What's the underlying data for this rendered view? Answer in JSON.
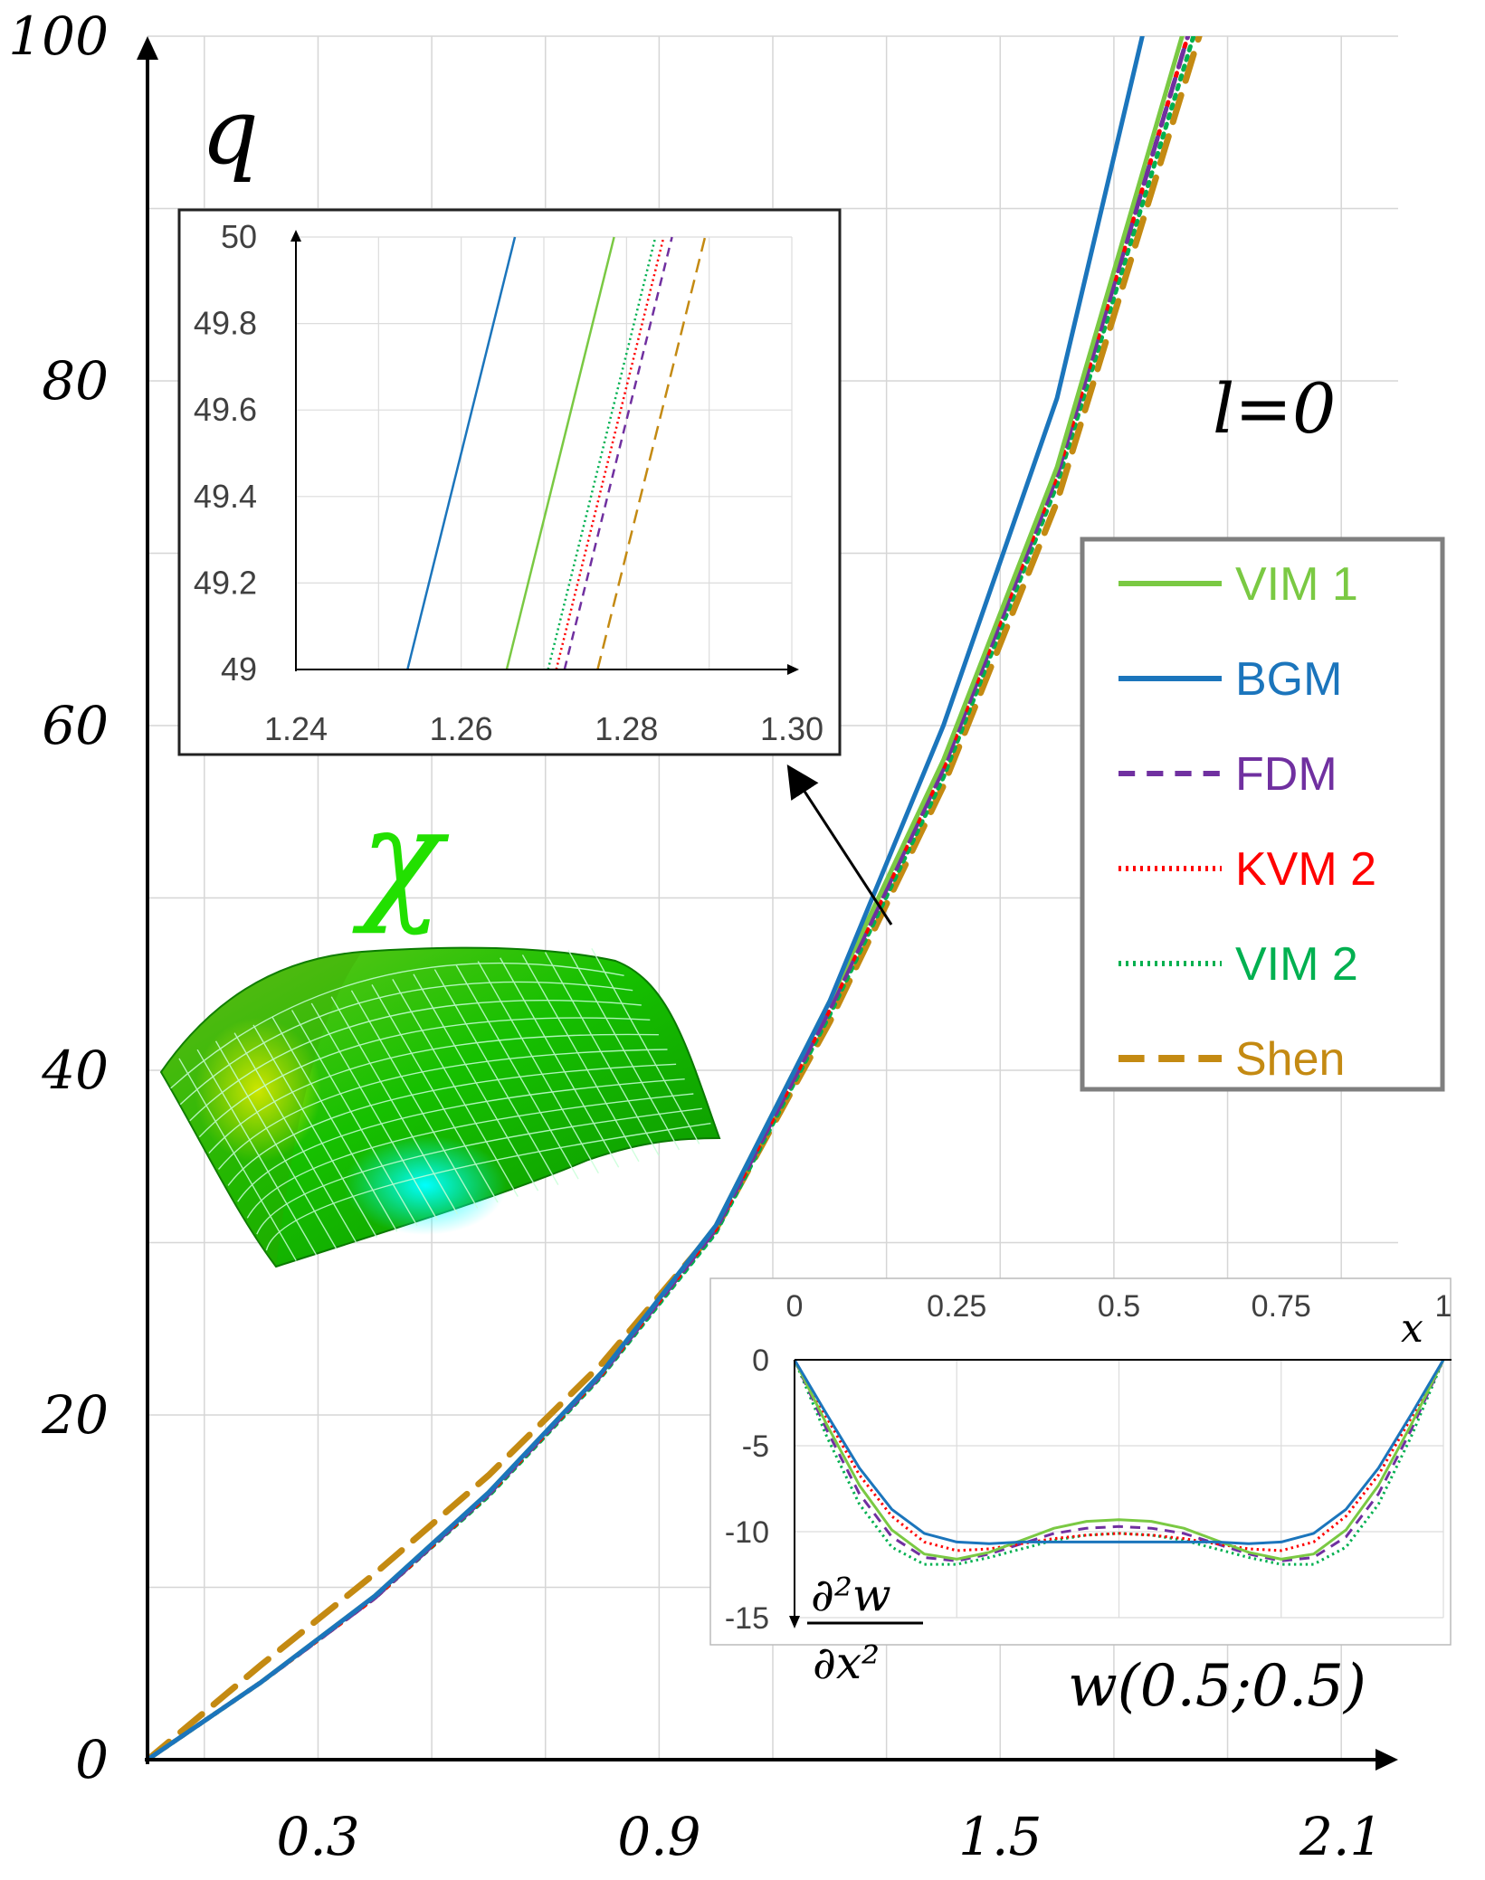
{
  "chart_data": [
    {
      "type": "line",
      "role": "main",
      "ylabel": "q",
      "xlabel": "w(0.5;0.5)",
      "annotation": "l=0",
      "surface_label": "χ",
      "xlim": [
        0,
        2.2
      ],
      "ylim": [
        0,
        100
      ],
      "x_ticks": [
        "0.3",
        "0.9",
        "1.5",
        "2.1"
      ],
      "x_tick_values": [
        0.3,
        0.9,
        1.5,
        2.1
      ],
      "y_ticks": [
        "0",
        "20",
        "40",
        "60",
        "80",
        "100"
      ],
      "y_tick_values": [
        0,
        20,
        40,
        60,
        80,
        100
      ],
      "grid": true,
      "legend_position": "right",
      "series": [
        {
          "name": "VIM 1",
          "color": "#7ac943",
          "dash": "solid",
          "x": [
            0,
            0.2,
            0.4,
            0.6,
            0.8,
            1.0,
            1.2,
            1.4,
            1.6,
            1.82
          ],
          "y": [
            0,
            4.5,
            9.5,
            15.5,
            22.5,
            31,
            44,
            58,
            75,
            100
          ]
        },
        {
          "name": "BGM",
          "color": "#1b75bc",
          "dash": "solid",
          "x": [
            0,
            0.2,
            0.4,
            0.6,
            0.8,
            1.0,
            1.2,
            1.4,
            1.6,
            1.75
          ],
          "y": [
            0,
            4.5,
            9.5,
            15.5,
            22.5,
            31,
            44,
            60,
            79,
            100
          ]
        },
        {
          "name": "FDM",
          "color": "#7030a0",
          "dash": "dashed",
          "x": [
            0,
            0.2,
            0.4,
            0.6,
            0.8,
            1.0,
            1.2,
            1.4,
            1.6,
            1.83
          ],
          "y": [
            0,
            4.5,
            9.4,
            15.4,
            22.4,
            30.8,
            43.5,
            57.5,
            74.5,
            100
          ]
        },
        {
          "name": "KVM 2",
          "color": "#ff0000",
          "dash": "dotted",
          "x": [
            0,
            0.2,
            0.4,
            0.6,
            0.8,
            1.0,
            1.2,
            1.4,
            1.6,
            1.83
          ],
          "y": [
            0,
            4.5,
            9.4,
            15.4,
            22.4,
            30.8,
            43.5,
            57.5,
            74.5,
            100
          ]
        },
        {
          "name": "VIM 2",
          "color": "#00b050",
          "dash": "dotted",
          "x": [
            0,
            0.2,
            0.4,
            0.6,
            0.8,
            1.0,
            1.2,
            1.4,
            1.6,
            1.84
          ],
          "y": [
            0,
            4.5,
            9.4,
            15.3,
            22.3,
            30.6,
            43.2,
            57,
            74,
            100
          ]
        },
        {
          "name": "Shen",
          "color": "#c48a12",
          "dash": "longdash",
          "x": [
            0,
            0.2,
            0.4,
            0.6,
            0.8,
            1.0,
            1.2,
            1.4,
            1.6,
            1.85
          ],
          "y": [
            0,
            5.5,
            10.8,
            16.5,
            23,
            30.8,
            42.8,
            56.5,
            73,
            100
          ]
        }
      ]
    },
    {
      "type": "line",
      "role": "zoom-inset",
      "xlim": [
        1.24,
        1.3
      ],
      "ylim": [
        49,
        50
      ],
      "x_ticks": [
        "1.24",
        "1.26",
        "1.28",
        "1.30"
      ],
      "x_tick_values": [
        1.24,
        1.26,
        1.28,
        1.3
      ],
      "y_ticks": [
        "49",
        "49.2",
        "49.4",
        "49.6",
        "49.8",
        "50"
      ],
      "y_tick_values": [
        49,
        49.2,
        49.4,
        49.6,
        49.8,
        50
      ],
      "grid": true,
      "series": [
        {
          "name": "BGM",
          "x": [
            1.2535,
            1.2665
          ],
          "y": [
            49,
            50
          ]
        },
        {
          "name": "VIM 1",
          "x": [
            1.2655,
            1.2785
          ],
          "y": [
            49,
            50
          ]
        },
        {
          "name": "VIM 2",
          "x": [
            1.2705,
            1.2835
          ],
          "y": [
            49,
            50
          ]
        },
        {
          "name": "KVM 2",
          "x": [
            1.2715,
            1.2845
          ],
          "y": [
            49,
            50
          ]
        },
        {
          "name": "FDM",
          "x": [
            1.2725,
            1.2855
          ],
          "y": [
            49,
            50
          ]
        },
        {
          "name": "Shen",
          "x": [
            1.2765,
            1.2895
          ],
          "y": [
            49,
            50
          ]
        }
      ]
    },
    {
      "type": "line",
      "role": "second-derivative-inset",
      "xlabel": "x",
      "ylabel_num": "∂²w",
      "ylabel_den": "∂x²",
      "xlim": [
        0,
        1
      ],
      "ylim": [
        -15,
        0
      ],
      "x_ticks": [
        "0",
        "0.25",
        "0.5",
        "0.75",
        "1"
      ],
      "x_tick_values": [
        0,
        0.25,
        0.5,
        0.75,
        1
      ],
      "y_ticks": [
        "0",
        "-5",
        "-10",
        "-15"
      ],
      "y_tick_values": [
        0,
        -5,
        -10,
        -15
      ],
      "grid": true,
      "series": [
        {
          "name": "BGM",
          "x": [
            0,
            0.05,
            0.1,
            0.15,
            0.2,
            0.25,
            0.3,
            0.35,
            0.4,
            0.45,
            0.5,
            0.55,
            0.6,
            0.65,
            0.7,
            0.75,
            0.8,
            0.85,
            0.9,
            0.95,
            1
          ],
          "y": [
            0,
            -3.2,
            -6.3,
            -8.7,
            -10.1,
            -10.6,
            -10.7,
            -10.6,
            -10.6,
            -10.6,
            -10.6,
            -10.6,
            -10.6,
            -10.6,
            -10.7,
            -10.6,
            -10.1,
            -8.7,
            -6.3,
            -3.2,
            0
          ]
        },
        {
          "name": "VIM 1",
          "x": [
            0,
            0.05,
            0.1,
            0.15,
            0.2,
            0.25,
            0.3,
            0.35,
            0.4,
            0.45,
            0.5,
            0.55,
            0.6,
            0.65,
            0.7,
            0.75,
            0.8,
            0.85,
            0.9,
            0.95,
            1
          ],
          "y": [
            0,
            -3.8,
            -7.3,
            -9.9,
            -11.3,
            -11.6,
            -11.2,
            -10.5,
            -9.8,
            -9.4,
            -9.3,
            -9.4,
            -9.8,
            -10.5,
            -11.2,
            -11.6,
            -11.3,
            -9.9,
            -7.3,
            -3.8,
            0
          ]
        },
        {
          "name": "FDM",
          "x": [
            0,
            0.05,
            0.1,
            0.15,
            0.2,
            0.25,
            0.3,
            0.35,
            0.4,
            0.45,
            0.5,
            0.55,
            0.6,
            0.65,
            0.7,
            0.75,
            0.8,
            0.85,
            0.9,
            0.95,
            1
          ],
          "y": [
            0,
            -4.1,
            -7.8,
            -10.3,
            -11.5,
            -11.7,
            -11.3,
            -10.7,
            -10.1,
            -9.8,
            -9.7,
            -9.8,
            -10.1,
            -10.7,
            -11.3,
            -11.7,
            -11.5,
            -10.3,
            -7.8,
            -4.1,
            0
          ]
        },
        {
          "name": "KVM 2",
          "x": [
            0,
            0.05,
            0.1,
            0.15,
            0.2,
            0.25,
            0.3,
            0.35,
            0.4,
            0.45,
            0.5,
            0.55,
            0.6,
            0.65,
            0.7,
            0.75,
            0.8,
            0.85,
            0.9,
            0.95,
            1
          ],
          "y": [
            0,
            -3.4,
            -6.7,
            -9.1,
            -10.6,
            -11.1,
            -11.0,
            -10.7,
            -10.4,
            -10.2,
            -10.1,
            -10.2,
            -10.4,
            -10.7,
            -11.0,
            -11.1,
            -10.6,
            -9.1,
            -6.7,
            -3.4,
            0
          ]
        },
        {
          "name": "VIM 2",
          "x": [
            0,
            0.05,
            0.1,
            0.15,
            0.2,
            0.25,
            0.3,
            0.35,
            0.4,
            0.45,
            0.5,
            0.55,
            0.6,
            0.65,
            0.7,
            0.75,
            0.8,
            0.85,
            0.9,
            0.95,
            1
          ],
          "y": [
            0,
            -4.5,
            -8.4,
            -10.9,
            -11.9,
            -11.9,
            -11.5,
            -11.0,
            -10.5,
            -10.2,
            -10.1,
            -10.2,
            -10.5,
            -11.0,
            -11.5,
            -11.9,
            -11.9,
            -10.9,
            -8.4,
            -4.5,
            0
          ]
        }
      ]
    }
  ]
}
